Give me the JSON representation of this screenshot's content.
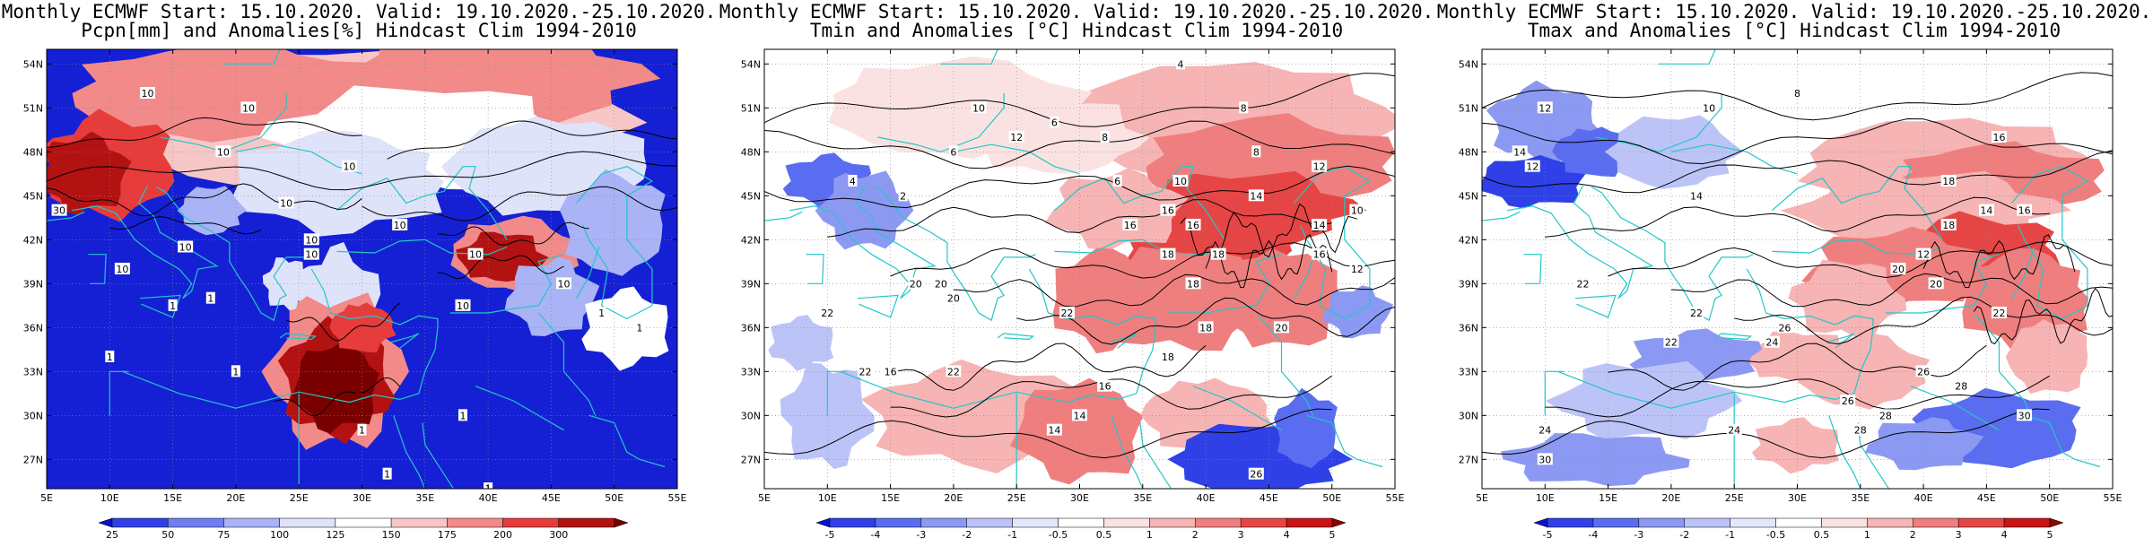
{
  "panels": [
    {
      "title1": "Monthly ECMWF Start: 15.10.2020. Valid: 19.10.2020.-25.10.2020.",
      "title2": "Pcpn[mm] and Anomalies[%] Hindcast Clim 1994-2010",
      "variable": "precipitation",
      "colorbar": {
        "labels": [
          "25",
          "50",
          "75",
          "100",
          "125",
          "150",
          "175",
          "200",
          "300"
        ],
        "colors": [
          "#0b13c9",
          "#2f41e6",
          "#6f7ff0",
          "#a9b3f5",
          "#dfe3fa",
          "#ffffff",
          "#f7c7c7",
          "#f28a8a",
          "#e63c3c",
          "#b31212",
          "#7a0000"
        ]
      },
      "contour_labels": [
        "10",
        "10",
        "10",
        "10",
        "10",
        "10",
        "10",
        "10",
        "10",
        "10",
        "10",
        "10",
        "30",
        "1",
        "1",
        "1",
        "1",
        "1",
        "1",
        "1",
        "1",
        "10",
        "1",
        "1"
      ]
    },
    {
      "title1": "Monthly ECMWF Start: 15.10.2020. Valid: 19.10.2020.-25.10.2020.",
      "title2": "Tmin and Anomalies [°C] Hindcast Clim 1994-2010",
      "variable": "tmin",
      "colorbar": {
        "labels": [
          "-5",
          "-4",
          "-3",
          "-2",
          "-1",
          "-0.5",
          "0.5",
          "1",
          "2",
          "3",
          "4",
          "5"
        ],
        "colors": [
          "#0b13c9",
          "#2f41e6",
          "#5a6cef",
          "#8c99f3",
          "#bcc4f7",
          "#e4e7fb",
          "#ffffff",
          "#fbe2e2",
          "#f6b4b4",
          "#ef7f7f",
          "#e64545",
          "#c81414",
          "#8f0000"
        ]
      },
      "contour_labels": [
        "4",
        "6",
        "8",
        "6",
        "10",
        "8",
        "12",
        "16",
        "16",
        "16",
        "14",
        "18",
        "18",
        "20",
        "20",
        "22",
        "22",
        "22",
        "18",
        "18",
        "16",
        "14",
        "14",
        "20",
        "26",
        "10",
        "12",
        "8",
        "18",
        "6",
        "4",
        "2",
        "14",
        "16",
        "12",
        "10",
        "20",
        "22",
        "16"
      ]
    },
    {
      "title1": "Monthly ECMWF Start: 15.10.2020. Valid: 19.10.2020.-25.10.2020.",
      "title2": "Tmax and Anomalies [°C] Hindcast Clim 1994-2010",
      "variable": "tmax",
      "colorbar": {
        "labels": [
          "-5",
          "-4",
          "-3",
          "-2",
          "-1",
          "-0.5",
          "0.5",
          "1",
          "2",
          "3",
          "4",
          "5"
        ],
        "colors": [
          "#0b13c9",
          "#2f41e6",
          "#5a6cef",
          "#8c99f3",
          "#bcc4f7",
          "#e4e7fb",
          "#ffffff",
          "#fbe2e2",
          "#f6b4b4",
          "#ef7f7f",
          "#e64545",
          "#c81414",
          "#8f0000"
        ]
      },
      "contour_labels": [
        "12",
        "10",
        "8",
        "14",
        "12",
        "16",
        "14",
        "18",
        "14",
        "12",
        "16",
        "18",
        "22",
        "22",
        "20",
        "24",
        "22",
        "26",
        "28",
        "26",
        "24",
        "26",
        "28",
        "30",
        "28",
        "24",
        "30",
        "20",
        "22"
      ]
    }
  ],
  "lat_labels": [
    "54N",
    "51N",
    "48N",
    "45N",
    "42N",
    "39N",
    "36N",
    "33N",
    "30N",
    "27N"
  ],
  "lon_labels": [
    "5E",
    "10E",
    "15E",
    "20E",
    "25E",
    "30E",
    "35E",
    "40E",
    "45E",
    "50E",
    "55E"
  ]
}
